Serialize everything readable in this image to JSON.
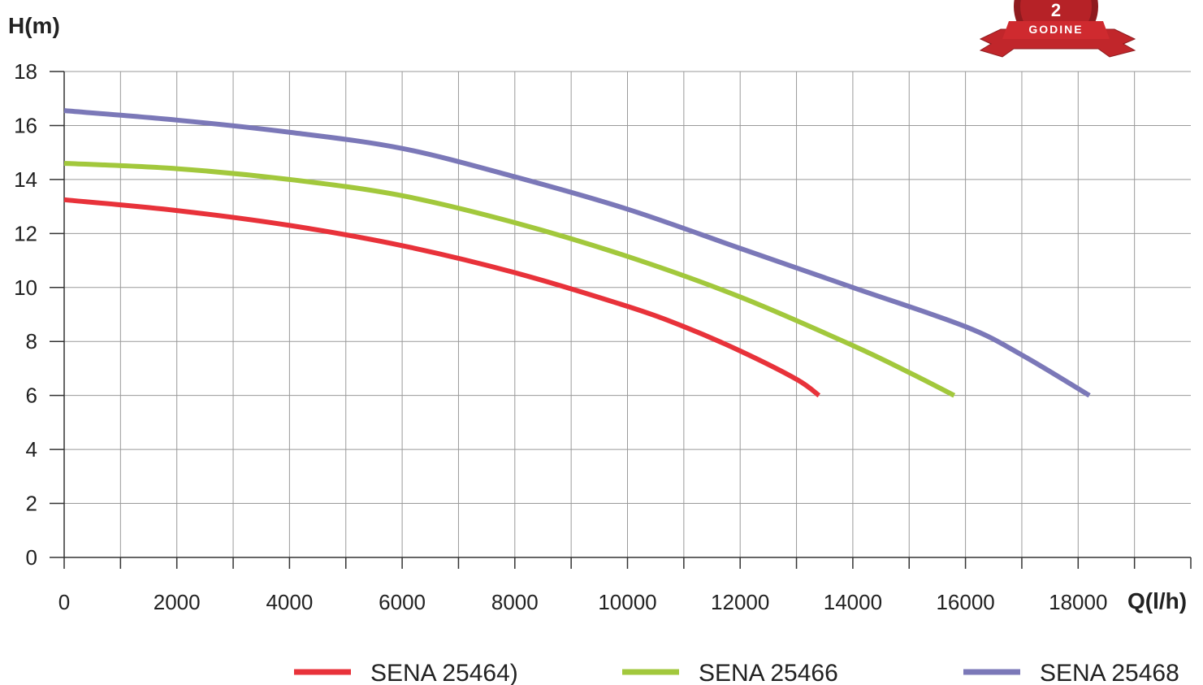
{
  "chart_data": {
    "type": "line",
    "ylabel": "H(m)",
    "xlabel": "Q(l/h)",
    "xlim": [
      0,
      20000
    ],
    "ylim": [
      0,
      18
    ],
    "x_ticks": [
      0,
      2000,
      4000,
      6000,
      8000,
      10000,
      12000,
      14000,
      16000,
      18000
    ],
    "y_ticks": [
      0,
      2,
      4,
      6,
      8,
      10,
      12,
      14,
      16,
      18
    ],
    "grid": true,
    "legend_position": "bottom",
    "series": [
      {
        "name": "SENA 25464)",
        "color": "#e8323a",
        "x": [
          0,
          2000,
          4000,
          6000,
          8000,
          10000,
          11000,
          12000,
          13000,
          13400
        ],
        "y": [
          13.25,
          12.85,
          12.3,
          11.55,
          10.55,
          9.3,
          8.55,
          7.65,
          6.6,
          6.0
        ]
      },
      {
        "name": "SENA 25466",
        "color": "#a2c83c",
        "x": [
          0,
          2000,
          4000,
          6000,
          8000,
          10000,
          12000,
          14000,
          15000,
          15800
        ],
        "y": [
          14.6,
          14.4,
          14.0,
          13.4,
          12.4,
          11.15,
          9.65,
          7.85,
          6.85,
          6.0
        ]
      },
      {
        "name": "SENA 25468",
        "color": "#7b78b8",
        "x": [
          0,
          2000,
          4000,
          6000,
          8000,
          10000,
          12000,
          14000,
          16000,
          17000,
          18200
        ],
        "y": [
          16.55,
          16.2,
          15.75,
          15.15,
          14.1,
          12.9,
          11.45,
          10.0,
          8.55,
          7.5,
          6.0
        ]
      }
    ]
  },
  "badge": {
    "text": "GODINE",
    "numeral": "2"
  }
}
